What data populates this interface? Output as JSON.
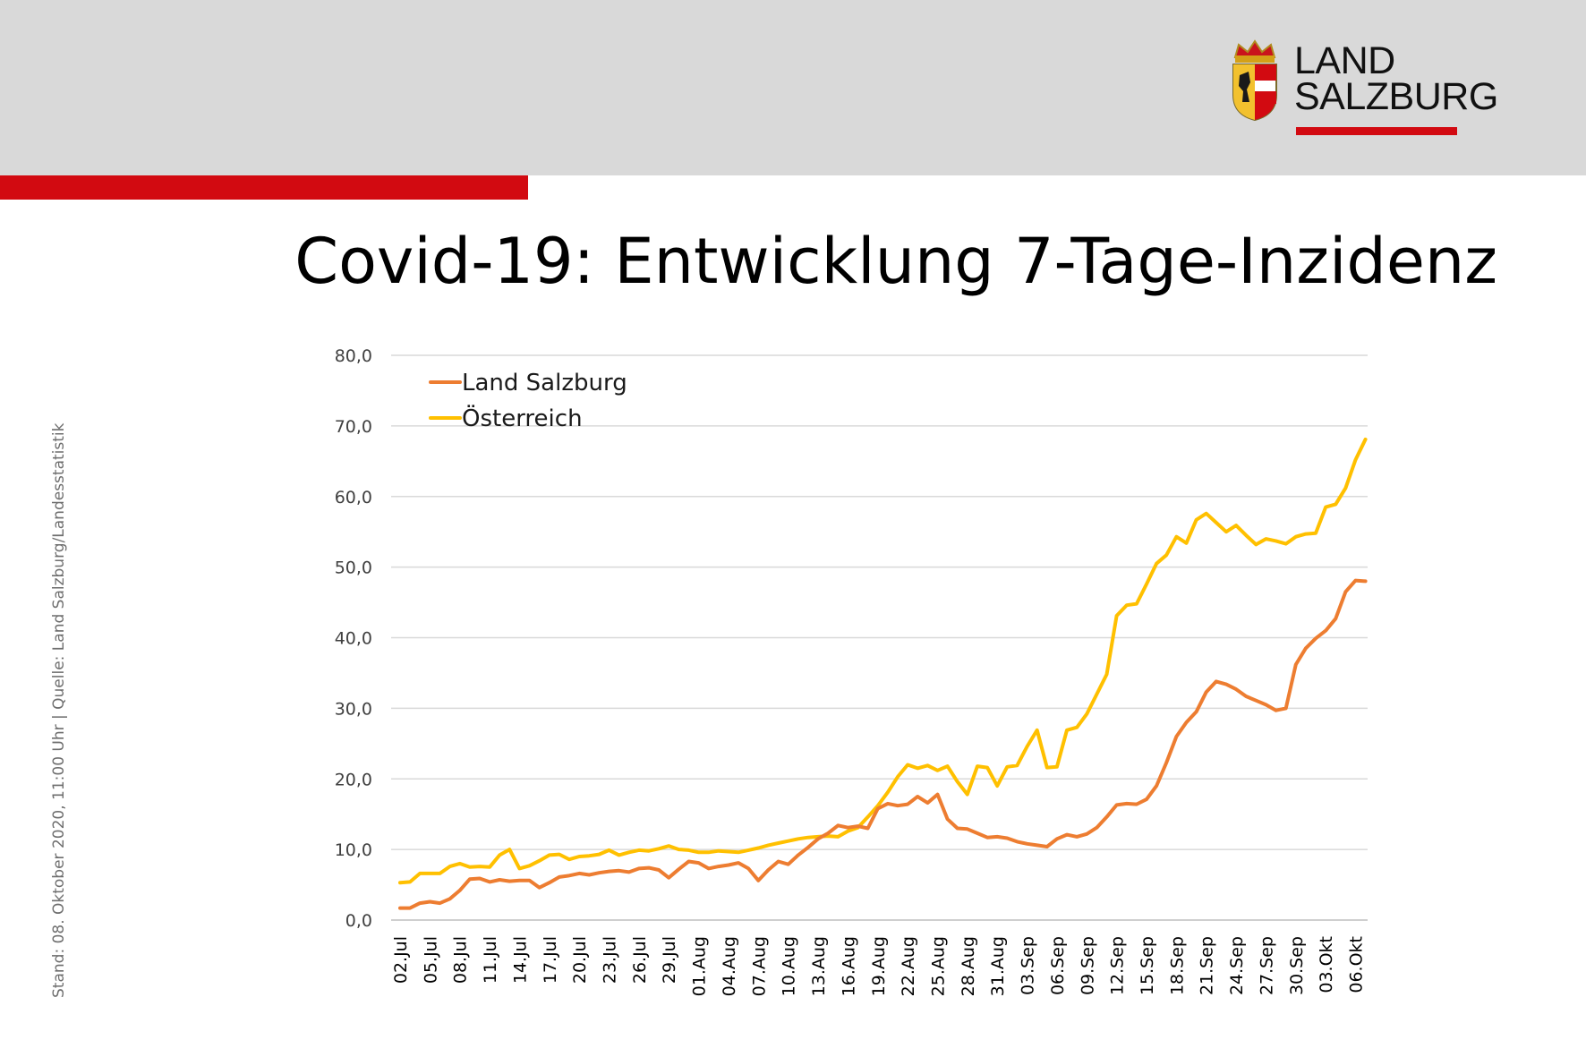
{
  "header": {
    "logo_line1": "LAND",
    "logo_line2": "SALZBURG",
    "brand_color": "#d20a11"
  },
  "title": "Covid-19: Entwicklung 7-Tage-Inzidenz",
  "source_note": "Stand: 08. Oktober 2020, 11:00 Uhr  |  Quelle: Land Salzburg/Landesstatistik",
  "chart_data": {
    "type": "line",
    "ylim": [
      0,
      80
    ],
    "yticks": [
      "0,0",
      "10,0",
      "20,0",
      "30,0",
      "40,0",
      "50,0",
      "60,0",
      "70,0",
      "80,0"
    ],
    "grid": "horizontal",
    "legend_placement": "top-left",
    "x": [
      "02.Jul",
      "03.Jul",
      "04.Jul",
      "05.Jul",
      "06.Jul",
      "07.Jul",
      "08.Jul",
      "09.Jul",
      "10.Jul",
      "11.Jul",
      "12.Jul",
      "13.Jul",
      "14.Jul",
      "15.Jul",
      "16.Jul",
      "17.Jul",
      "18.Jul",
      "19.Jul",
      "20.Jul",
      "21.Jul",
      "22.Jul",
      "23.Jul",
      "24.Jul",
      "25.Jul",
      "26.Jul",
      "27.Jul",
      "28.Jul",
      "29.Jul",
      "30.Jul",
      "31.Jul",
      "01.Aug",
      "02.Aug",
      "03.Aug",
      "04.Aug",
      "05.Aug",
      "06.Aug",
      "07.Aug",
      "08.Aug",
      "09.Aug",
      "10.Aug",
      "11.Aug",
      "12.Aug",
      "13.Aug",
      "14.Aug",
      "15.Aug",
      "16.Aug",
      "17.Aug",
      "18.Aug",
      "19.Aug",
      "20.Aug",
      "21.Aug",
      "22.Aug",
      "23.Aug",
      "24.Aug",
      "25.Aug",
      "26.Aug",
      "27.Aug",
      "28.Aug",
      "29.Aug",
      "30.Aug",
      "31.Aug",
      "01.Sep",
      "02.Sep",
      "03.Sep",
      "04.Sep",
      "05.Sep",
      "06.Sep",
      "07.Sep",
      "08.Sep",
      "09.Sep",
      "10.Sep",
      "11.Sep",
      "12.Sep",
      "13.Sep",
      "14.Sep",
      "15.Sep",
      "16.Sep",
      "17.Sep",
      "18.Sep",
      "19.Sep",
      "20.Sep",
      "21.Sep",
      "22.Sep",
      "23.Sep",
      "24.Sep",
      "25.Sep",
      "26.Sep",
      "27.Sep",
      "28.Sep",
      "29.Sep",
      "30.Sep",
      "01.Okt",
      "02.Okt",
      "03.Okt",
      "04.Okt",
      "05.Okt",
      "06.Okt",
      "07.Okt"
    ],
    "x_tick_labels": [
      "02.Jul",
      "05.Jul",
      "08.Jul",
      "11.Jul",
      "14.Jul",
      "17.Jul",
      "20.Jul",
      "23.Jul",
      "26.Jul",
      "29.Jul",
      "01.Aug",
      "04.Aug",
      "07.Aug",
      "10.Aug",
      "13.Aug",
      "16.Aug",
      "19.Aug",
      "22.Aug",
      "25.Aug",
      "28.Aug",
      "31.Aug",
      "03.Sep",
      "06.Sep",
      "09.Sep",
      "12.Sep",
      "15.Sep",
      "18.Sep",
      "21.Sep",
      "24.Sep",
      "27.Sep",
      "30.Sep",
      "03.Okt",
      "06.Okt"
    ],
    "series": [
      {
        "name": "Land Salzburg",
        "color": "#ed7d31",
        "values": [
          1.7,
          1.7,
          2.4,
          2.6,
          2.4,
          3.0,
          4.2,
          5.8,
          5.9,
          5.4,
          5.7,
          5.5,
          5.6,
          5.6,
          4.6,
          5.3,
          6.1,
          6.3,
          6.6,
          6.4,
          6.7,
          6.9,
          7.0,
          6.8,
          7.3,
          7.4,
          7.1,
          6.0,
          7.2,
          8.3,
          8.1,
          7.3,
          7.6,
          7.8,
          8.1,
          7.3,
          5.6,
          7.1,
          8.3,
          7.9,
          9.2,
          10.3,
          11.5,
          12.3,
          13.4,
          13.1,
          13.3,
          13.0,
          15.8,
          16.5,
          16.2,
          16.4,
          17.5,
          16.6,
          17.8,
          14.3,
          13.0,
          12.9,
          12.3,
          11.7,
          11.8,
          11.6,
          11.1,
          10.8,
          10.6,
          10.4,
          11.5,
          12.1,
          11.8,
          12.2,
          13.1,
          14.6,
          16.3,
          16.5,
          16.4,
          17.1,
          19.0,
          22.3,
          26.0,
          28.0,
          29.5,
          32.3,
          33.8,
          33.4,
          32.7,
          31.7,
          31.1,
          30.5,
          29.7,
          30.0,
          36.2,
          38.5,
          39.9,
          41.0,
          42.7,
          46.5,
          48.1,
          48.0
        ]
      },
      {
        "name": "Österreich",
        "color": "#ffc000",
        "values": [
          5.3,
          5.4,
          6.6,
          6.6,
          6.6,
          7.6,
          8.0,
          7.5,
          7.6,
          7.5,
          9.2,
          10.0,
          7.3,
          7.7,
          8.4,
          9.2,
          9.3,
          8.6,
          9.0,
          9.1,
          9.3,
          9.9,
          9.2,
          9.6,
          9.9,
          9.8,
          10.1,
          10.5,
          10.0,
          9.9,
          9.6,
          9.6,
          9.8,
          9.7,
          9.6,
          9.9,
          10.2,
          10.6,
          10.9,
          11.2,
          11.5,
          11.7,
          11.8,
          11.9,
          11.8,
          12.6,
          13.1,
          14.6,
          16.2,
          18.1,
          20.3,
          22.0,
          21.5,
          21.9,
          21.2,
          21.8,
          19.6,
          17.8,
          21.8,
          21.6,
          19.0,
          21.7,
          21.9,
          24.6,
          26.9,
          21.6,
          21.7,
          26.9,
          27.3,
          29.2,
          32.0,
          34.8,
          43.1,
          44.6,
          44.8,
          47.6,
          50.5,
          51.7,
          54.3,
          53.4,
          56.7,
          57.6,
          56.3,
          55.0,
          55.9,
          54.5,
          53.2,
          54.0,
          53.7,
          53.3,
          54.3,
          54.7,
          54.8,
          58.5,
          58.9,
          61.2,
          65.2,
          68.1
        ]
      }
    ]
  }
}
